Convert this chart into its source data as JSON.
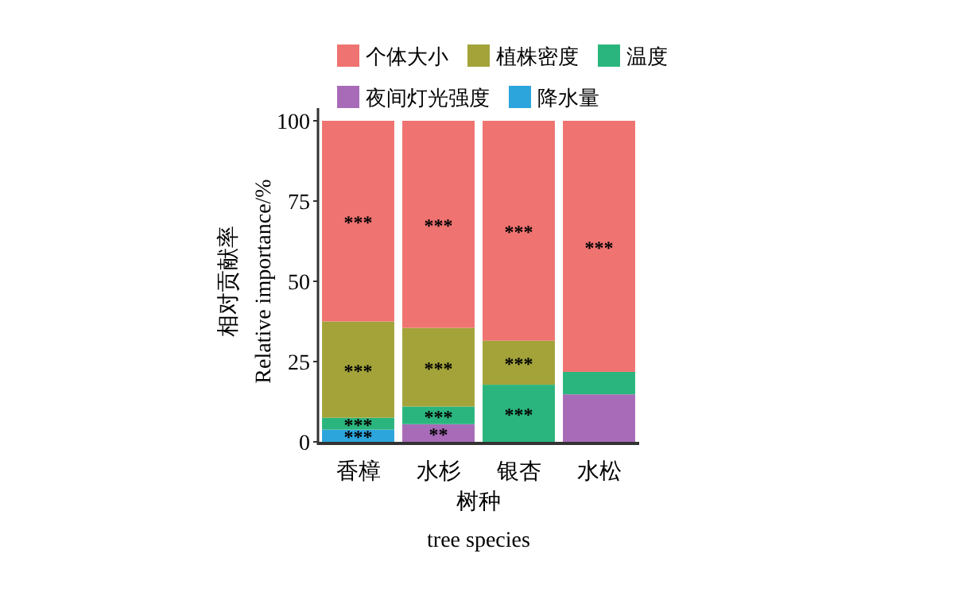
{
  "chart_data": {
    "type": "bar",
    "stacked": true,
    "xlabel": "树种\ntree species",
    "ylabel": "相对贡献率\nRelative importance/%",
    "categories": [
      "香樟",
      "水杉",
      "银杏",
      "水松"
    ],
    "series": [
      {
        "name": "降水量",
        "color": "#2ca5dc",
        "values": [
          3.8,
          0,
          0,
          0
        ]
      },
      {
        "name": "夜间灯光强度",
        "color": "#a86bb8",
        "values": [
          0,
          5.5,
          0,
          14.8
        ]
      },
      {
        "name": "温度",
        "color": "#2bb57e",
        "values": [
          3.7,
          5.5,
          17.8,
          7
        ]
      },
      {
        "name": "植株密度",
        "color": "#a3a33a",
        "values": [
          30,
          24.5,
          13.7,
          0
        ]
      },
      {
        "name": "个体大小",
        "color": "#ef7370",
        "values": [
          62.5,
          64.5,
          68.5,
          78.2
        ]
      }
    ],
    "ylim": [
      0,
      100
    ],
    "yticks": [
      0,
      25,
      50,
      75,
      100
    ],
    "grid": false,
    "legend": "top",
    "annotations": [
      "***",
      "***",
      "***",
      "***",
      "***",
      "***",
      "***",
      "**",
      "***",
      "***",
      "***",
      "***"
    ]
  }
}
